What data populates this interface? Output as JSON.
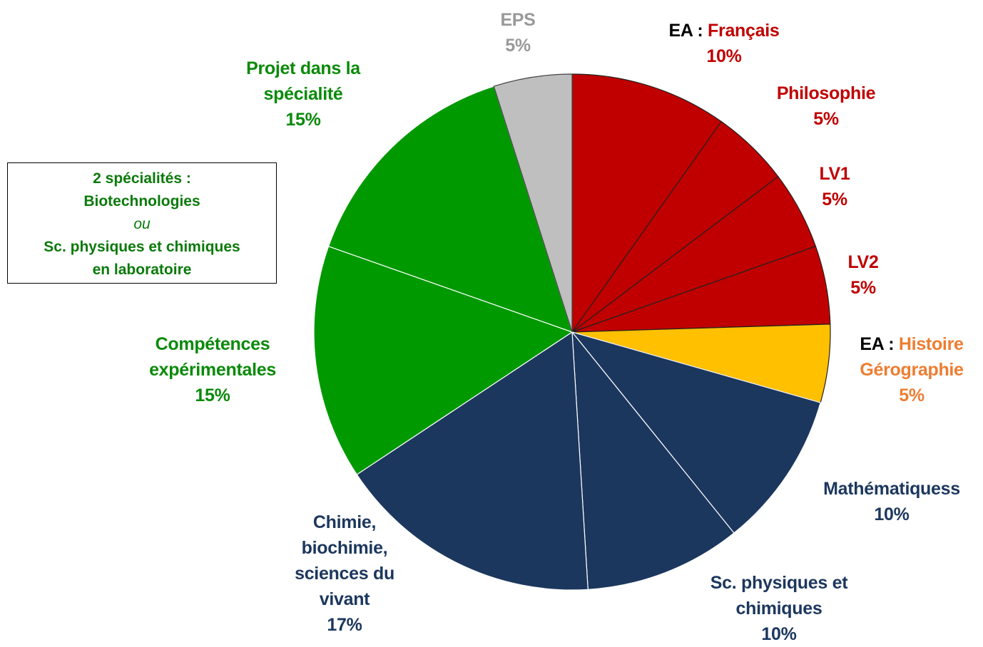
{
  "chart_data": {
    "type": "pie",
    "categories": [
      "EA : Français",
      "Philosophie",
      "LV1",
      "LV2",
      "EA : Histoire\nGérographie",
      "Mathématiquess",
      "Sc. physiques et\nchimiques",
      "Chimie,\nbiochimie,\nsciences du\nvivant",
      "Compétences\nexpérimentales",
      "Projet dans la\nspécialité",
      "EPS"
    ],
    "values": [
      10,
      5,
      5,
      5,
      5,
      10,
      10,
      17,
      15,
      15,
      5
    ],
    "value_labels": [
      "10%",
      "5%",
      "5%",
      "5%",
      "5%",
      "10%",
      "10%",
      "17%",
      "15%",
      "15%",
      "5%"
    ],
    "colors": [
      "#c00000",
      "#c00000",
      "#c00000",
      "#c00000",
      "#ffc000",
      "#1c375e",
      "#1c375e",
      "#1c375e",
      "#009900",
      "#009900",
      "#bfbfbf"
    ],
    "label_colors": [
      "#c00000",
      "#c00000",
      "#c00000",
      "#c00000",
      "#ed7d31",
      "#1c375e",
      "#1c375e",
      "#1c375e",
      "#0a8a0a",
      "#0a8a0a",
      "#999999"
    ],
    "edge_colors": [
      "#222222",
      "#222222",
      "#222222",
      "#222222",
      "#222222",
      "#ffffff",
      "#ffffff",
      "#ffffff",
      "#ffffff",
      "#ffffff",
      "#444444"
    ],
    "note": [
      "2 spécialités :",
      "Biotechnologies",
      "ou",
      "Sc. physiques et chimiques",
      "en laboratoire"
    ]
  }
}
